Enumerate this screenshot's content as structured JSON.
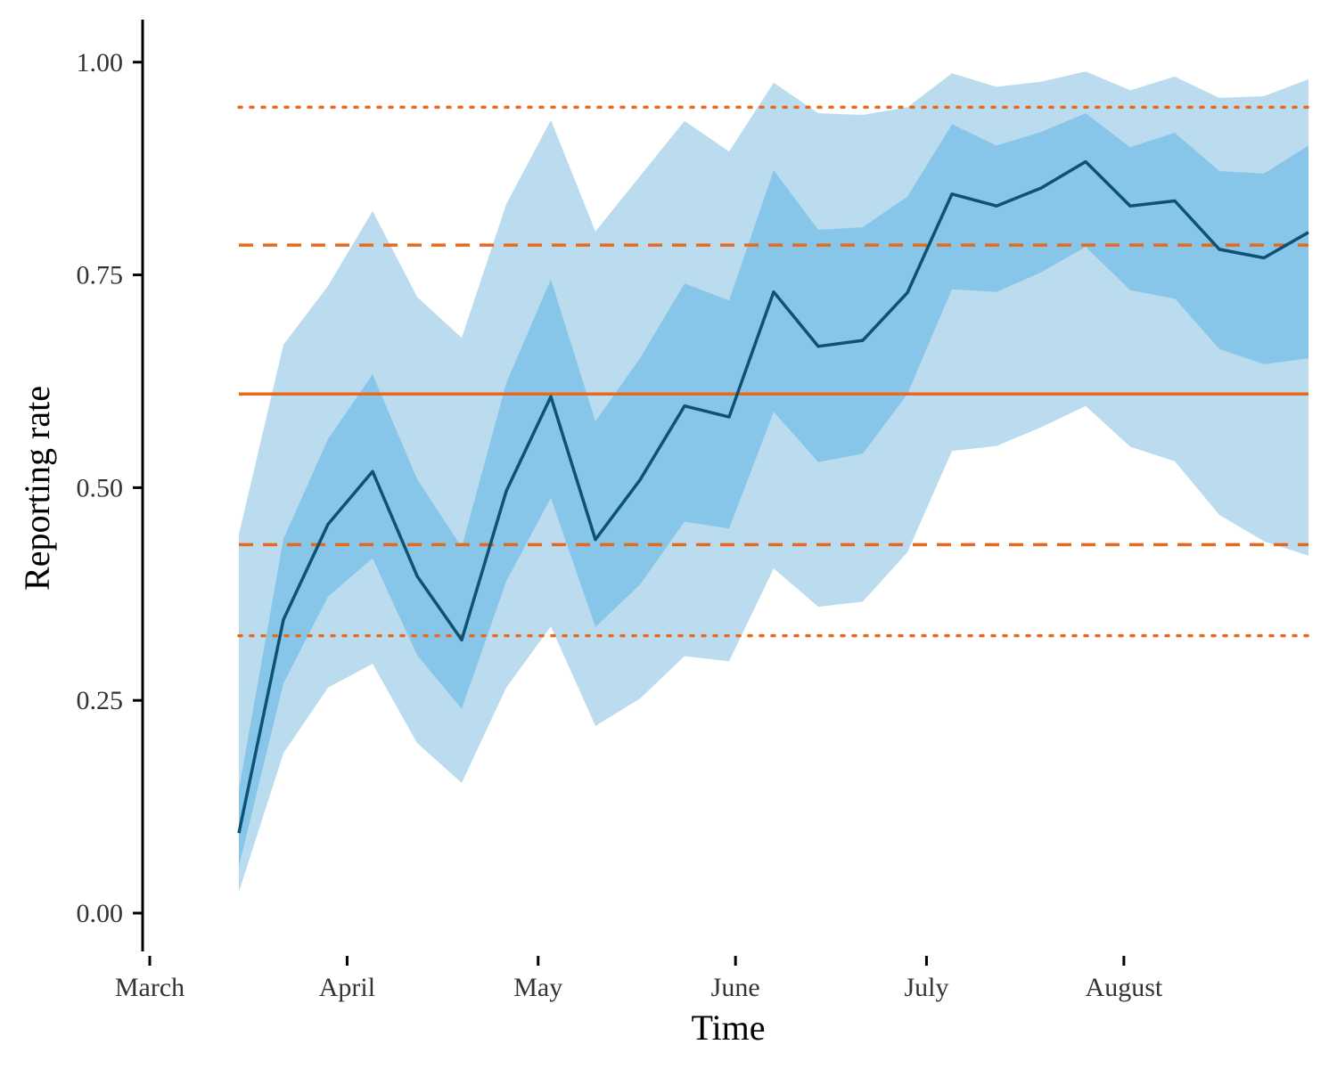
{
  "chart_data": {
    "type": "line",
    "title": "",
    "xlabel": "Time",
    "ylabel": "Reporting rate",
    "x_ticks": [
      "March",
      "April",
      "May",
      "June",
      "July",
      "August"
    ],
    "y_ticks": [
      "0.00",
      "0.25",
      "0.50",
      "0.75",
      "1.00"
    ],
    "ylim": [
      -0.045,
      1.05
    ],
    "grid": false,
    "legend": "none",
    "colors": {
      "median_line": "#0b5273",
      "inner_band": "#88c6e9",
      "outer_band": "#badcee",
      "reference_lines": "#e8691c",
      "axis": "#000000"
    },
    "series": [
      {
        "role": "median",
        "x": [
          "2020-03-15",
          "2020-03-22",
          "2020-03-29",
          "2020-04-05",
          "2020-04-12",
          "2020-04-19",
          "2020-04-26",
          "2020-05-03",
          "2020-05-10",
          "2020-05-17",
          "2020-05-24",
          "2020-05-31",
          "2020-06-07",
          "2020-06-14",
          "2020-06-21",
          "2020-06-28",
          "2020-07-05",
          "2020-07-12",
          "2020-07-19",
          "2020-07-26",
          "2020-08-02",
          "2020-08-09",
          "2020-08-16",
          "2020-08-23",
          "2020-08-30"
        ],
        "values": [
          0.094,
          0.345,
          0.457,
          0.519,
          0.396,
          0.321,
          0.496,
          0.607,
          0.439,
          0.509,
          0.596,
          0.583,
          0.73,
          0.666,
          0.673,
          0.729,
          0.845,
          0.831,
          0.852,
          0.883,
          0.831,
          0.837,
          0.78,
          0.77,
          0.8
        ]
      },
      {
        "role": "inner_interval",
        "lower": [
          0.055,
          0.27,
          0.372,
          0.417,
          0.303,
          0.24,
          0.39,
          0.488,
          0.336,
          0.386,
          0.46,
          0.452,
          0.589,
          0.53,
          0.54,
          0.61,
          0.733,
          0.73,
          0.753,
          0.783,
          0.732,
          0.722,
          0.663,
          0.645,
          0.652
        ],
        "upper": [
          0.145,
          0.44,
          0.557,
          0.633,
          0.51,
          0.43,
          0.623,
          0.745,
          0.578,
          0.652,
          0.74,
          0.72,
          0.873,
          0.803,
          0.806,
          0.842,
          0.927,
          0.902,
          0.918,
          0.94,
          0.9,
          0.917,
          0.872,
          0.869,
          0.902
        ]
      },
      {
        "role": "outer_interval",
        "lower": [
          0.025,
          0.188,
          0.265,
          0.293,
          0.2,
          0.153,
          0.265,
          0.337,
          0.22,
          0.252,
          0.302,
          0.296,
          0.405,
          0.36,
          0.366,
          0.424,
          0.543,
          0.549,
          0.571,
          0.596,
          0.548,
          0.531,
          0.468,
          0.437,
          0.42
        ],
        "upper": [
          0.445,
          0.668,
          0.737,
          0.825,
          0.724,
          0.676,
          0.833,
          0.932,
          0.801,
          0.866,
          0.931,
          0.895,
          0.976,
          0.94,
          0.938,
          0.947,
          0.987,
          0.971,
          0.977,
          0.989,
          0.967,
          0.983,
          0.958,
          0.96,
          0.98
        ]
      }
    ],
    "reference_lines": [
      {
        "style": "solid",
        "y": 0.61
      },
      {
        "style": "dashed",
        "y": 0.785
      },
      {
        "style": "dashed",
        "y": 0.433
      },
      {
        "style": "dotted",
        "y": 0.947
      },
      {
        "style": "dotted",
        "y": 0.326
      }
    ]
  }
}
